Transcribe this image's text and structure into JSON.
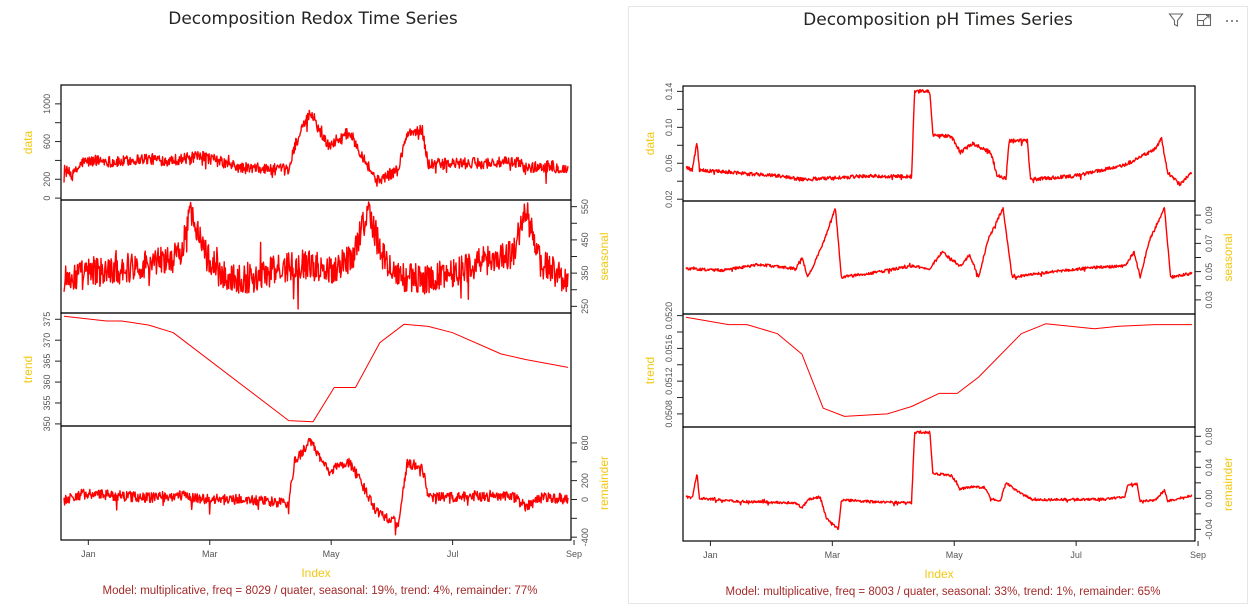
{
  "toolbar": {
    "filter_icon": "filter-icon",
    "focus_icon": "focus-mode-icon",
    "more_icon": "more-options-icon"
  },
  "colors": {
    "series": "#ff0000",
    "axis_label": "#f2c811",
    "caption": "#a52a2a",
    "frame": "#000000",
    "tick_text": "#555555"
  },
  "chart_data": [
    {
      "type": "line",
      "title": "Decomposition Redox Time Series",
      "xlabel": "Index",
      "x_ticks": [
        "Jan",
        "Mar",
        "May",
        "Jul",
        "Sep"
      ],
      "x_range_months": [
        0.55,
        8.95
      ],
      "caption": "Model: multiplicative, freq = 8029 / quater, seasonal: 19%, trend: 4%, remainder: 77%",
      "panels": [
        {
          "name": "data",
          "label": "data",
          "axis_side": "left",
          "ylim": [
            -20,
            1200
          ],
          "ticks": [
            "0",
            "200",
            "600",
            "1000"
          ],
          "tick_values": [
            0,
            200,
            600,
            1000
          ],
          "minor_ticks": [
            400,
            800
          ],
          "noise": 60,
          "series": [
            [
              0.6,
              300
            ],
            [
              0.75,
              240
            ],
            [
              0.9,
              380
            ],
            [
              1.2,
              400
            ],
            [
              1.5,
              380
            ],
            [
              1.9,
              420
            ],
            [
              2.3,
              400
            ],
            [
              2.9,
              440
            ],
            [
              3.5,
              320
            ],
            [
              4.3,
              300
            ],
            [
              4.4,
              560
            ],
            [
              4.65,
              900
            ],
            [
              4.95,
              560
            ],
            [
              5.3,
              700
            ],
            [
              5.75,
              180
            ],
            [
              6.1,
              300
            ],
            [
              6.25,
              680
            ],
            [
              6.5,
              720
            ],
            [
              6.6,
              360
            ],
            [
              7.4,
              370
            ],
            [
              8.1,
              380
            ],
            [
              8.2,
              320
            ],
            [
              8.6,
              340
            ],
            [
              8.9,
              300
            ]
          ]
        },
        {
          "name": "seasonal",
          "label": "seasonal",
          "axis_side": "right",
          "ylim": [
            230,
            570
          ],
          "ticks": [
            "250",
            "350",
            "450",
            "550"
          ],
          "tick_values": [
            250,
            350,
            450,
            550
          ],
          "minor_ticks": [
            300,
            400,
            500
          ],
          "noise": 45,
          "series": [
            [
              0.6,
              330
            ],
            [
              1.0,
              350
            ],
            [
              1.5,
              360
            ],
            [
              2.0,
              380
            ],
            [
              2.5,
              400
            ],
            [
              2.7,
              540
            ],
            [
              2.95,
              400
            ],
            [
              3.2,
              340
            ],
            [
              3.6,
              330
            ],
            [
              4.1,
              360
            ],
            [
              4.5,
              380
            ],
            [
              5.0,
              360
            ],
            [
              5.35,
              400
            ],
            [
              5.6,
              540
            ],
            [
              5.85,
              400
            ],
            [
              6.1,
              340
            ],
            [
              6.6,
              330
            ],
            [
              7.1,
              360
            ],
            [
              7.6,
              390
            ],
            [
              8.0,
              410
            ],
            [
              8.2,
              540
            ],
            [
              8.45,
              380
            ],
            [
              8.9,
              330
            ]
          ]
        },
        {
          "name": "trend",
          "label": "trend",
          "axis_side": "left",
          "ylim": [
            349.5,
            376.5
          ],
          "ticks": [
            "350",
            "355",
            "360",
            "365",
            "370",
            "375"
          ],
          "tick_values": [
            350,
            355,
            360,
            365,
            370,
            375
          ],
          "minor_ticks": [],
          "noise": 0,
          "series": [
            [
              0.6,
              375.7
            ],
            [
              1.3,
              374.6
            ],
            [
              1.55,
              374.6
            ],
            [
              2.0,
              373.6
            ],
            [
              2.4,
              371.8
            ],
            [
              4.3,
              350.8
            ],
            [
              4.7,
              350.5
            ],
            [
              5.05,
              358.7
            ],
            [
              5.4,
              358.7
            ],
            [
              5.8,
              369.4
            ],
            [
              6.2,
              373.8
            ],
            [
              6.6,
              373.3
            ],
            [
              7.0,
              371.8
            ],
            [
              7.8,
              366.7
            ],
            [
              8.2,
              365.4
            ],
            [
              8.9,
              363.5
            ]
          ]
        },
        {
          "name": "remainder",
          "label": "remainder",
          "axis_side": "right",
          "ylim": [
            -430,
            780
          ],
          "ticks": [
            "-400",
            "0",
            "200",
            "600"
          ],
          "tick_values": [
            -400,
            0,
            200,
            600
          ],
          "minor_ticks": [
            -200,
            400
          ],
          "noise": 55,
          "series": [
            [
              0.6,
              -10
            ],
            [
              0.9,
              60
            ],
            [
              1.5,
              40
            ],
            [
              2.0,
              20
            ],
            [
              2.5,
              40
            ],
            [
              3.0,
              0
            ],
            [
              3.5,
              0
            ],
            [
              4.3,
              -40
            ],
            [
              4.4,
              400
            ],
            [
              4.65,
              620
            ],
            [
              4.95,
              300
            ],
            [
              5.3,
              400
            ],
            [
              5.75,
              -120
            ],
            [
              6.1,
              -260
            ],
            [
              6.25,
              370
            ],
            [
              6.5,
              360
            ],
            [
              6.6,
              20
            ],
            [
              7.4,
              30
            ],
            [
              8.0,
              30
            ],
            [
              8.2,
              -70
            ],
            [
              8.5,
              30
            ],
            [
              8.9,
              0
            ]
          ]
        }
      ]
    },
    {
      "type": "line",
      "title": "Decomposition pH Times Series",
      "xlabel": "Index",
      "x_ticks": [
        "Jan",
        "Mar",
        "May",
        "Jul",
        "Sep"
      ],
      "x_range_months": [
        0.55,
        8.95
      ],
      "caption": "Model: multiplicative, freq = 8003 / quater, seasonal: 33%, trend: 1%, remainder: 65%",
      "panels": [
        {
          "name": "data",
          "label": "data",
          "axis_side": "left",
          "ylim": [
            0.018,
            0.146
          ],
          "ticks": [
            "0.02",
            "0.06",
            "0.10",
            "0.14"
          ],
          "tick_values": [
            0.02,
            0.06,
            0.1,
            0.14
          ],
          "minor_ticks": [
            0.04,
            0.08,
            0.12
          ],
          "noise": 0.002,
          "series": [
            [
              0.6,
              0.056
            ],
            [
              0.7,
              0.052
            ],
            [
              0.78,
              0.083
            ],
            [
              0.82,
              0.052
            ],
            [
              1.2,
              0.051
            ],
            [
              1.6,
              0.048
            ],
            [
              2.0,
              0.047
            ],
            [
              2.5,
              0.042
            ],
            [
              3.1,
              0.044
            ],
            [
              3.6,
              0.046
            ],
            [
              4.3,
              0.045
            ],
            [
              4.35,
              0.14
            ],
            [
              4.6,
              0.14
            ],
            [
              4.65,
              0.092
            ],
            [
              4.95,
              0.09
            ],
            [
              5.1,
              0.072
            ],
            [
              5.3,
              0.082
            ],
            [
              5.6,
              0.072
            ],
            [
              5.7,
              0.047
            ],
            [
              5.85,
              0.043
            ],
            [
              5.9,
              0.085
            ],
            [
              6.2,
              0.085
            ],
            [
              6.25,
              0.042
            ],
            [
              7.0,
              0.046
            ],
            [
              7.8,
              0.058
            ],
            [
              8.3,
              0.076
            ],
            [
              8.4,
              0.088
            ],
            [
              8.5,
              0.05
            ],
            [
              8.7,
              0.036
            ],
            [
              8.9,
              0.05
            ]
          ]
        },
        {
          "name": "seasonal",
          "label": "seasonal",
          "axis_side": "right",
          "ylim": [
            0.02,
            0.1
          ],
          "ticks": [
            "0.03",
            "0.05",
            "0.07",
            "0.09"
          ],
          "tick_values": [
            0.03,
            0.05,
            0.07,
            0.09
          ],
          "minor_ticks": [
            0.04,
            0.06,
            0.08
          ],
          "noise": 0.001,
          "series": [
            [
              0.6,
              0.052
            ],
            [
              1.2,
              0.051
            ],
            [
              1.8,
              0.055
            ],
            [
              2.4,
              0.052
            ],
            [
              2.5,
              0.06
            ],
            [
              2.6,
              0.046
            ],
            [
              2.85,
              0.07
            ],
            [
              3.05,
              0.095
            ],
            [
              3.15,
              0.046
            ],
            [
              3.8,
              0.05
            ],
            [
              4.3,
              0.054
            ],
            [
              4.6,
              0.052
            ],
            [
              4.8,
              0.064
            ],
            [
              5.1,
              0.054
            ],
            [
              5.25,
              0.062
            ],
            [
              5.4,
              0.046
            ],
            [
              5.55,
              0.072
            ],
            [
              5.8,
              0.095
            ],
            [
              5.95,
              0.046
            ],
            [
              6.6,
              0.05
            ],
            [
              7.3,
              0.053
            ],
            [
              7.8,
              0.054
            ],
            [
              7.95,
              0.064
            ],
            [
              8.05,
              0.046
            ],
            [
              8.2,
              0.072
            ],
            [
              8.45,
              0.095
            ],
            [
              8.55,
              0.046
            ],
            [
              8.9,
              0.049
            ]
          ]
        },
        {
          "name": "trend",
          "label": "trend",
          "axis_side": "left",
          "ylim": [
            0.05064,
            0.05202
          ],
          "ticks": [
            "0.0508",
            "0.0512",
            "0.0516",
            "0.0520"
          ],
          "tick_values": [
            0.0508,
            0.0512,
            0.0516,
            0.052
          ],
          "minor_ticks": [
            0.051,
            0.0514,
            0.0518
          ],
          "noise": 0,
          "series": [
            [
              0.6,
              0.05198
            ],
            [
              1.3,
              0.05189
            ],
            [
              1.6,
              0.05189
            ],
            [
              2.1,
              0.05178
            ],
            [
              2.5,
              0.05153
            ],
            [
              2.85,
              0.05087
            ],
            [
              3.2,
              0.05077
            ],
            [
              3.9,
              0.0508
            ],
            [
              4.3,
              0.05089
            ],
            [
              4.75,
              0.05105
            ],
            [
              5.05,
              0.05105
            ],
            [
              5.4,
              0.05125
            ],
            [
              6.1,
              0.05178
            ],
            [
              6.5,
              0.0519
            ],
            [
              7.3,
              0.05184
            ],
            [
              7.7,
              0.05187
            ],
            [
              8.3,
              0.05189
            ],
            [
              8.9,
              0.05189
            ]
          ]
        },
        {
          "name": "remainder",
          "label": "remainder",
          "axis_side": "right",
          "ylim": [
            -0.055,
            0.092
          ],
          "ticks": [
            "-0.04",
            "0.00",
            "0.04",
            "0.08"
          ],
          "tick_values": [
            -0.04,
            0.0,
            0.04,
            0.08
          ],
          "minor_ticks": [
            -0.02,
            0.02,
            0.06
          ],
          "noise": 0.0015,
          "series": [
            [
              0.6,
              0.002
            ],
            [
              0.7,
              0.0
            ],
            [
              0.78,
              0.032
            ],
            [
              0.82,
              0.0
            ],
            [
              1.5,
              -0.004
            ],
            [
              2.0,
              -0.005
            ],
            [
              2.4,
              -0.006
            ],
            [
              2.5,
              -0.012
            ],
            [
              2.6,
              -0.002
            ],
            [
              2.8,
              0.002
            ],
            [
              2.9,
              -0.025
            ],
            [
              3.1,
              -0.04
            ],
            [
              3.15,
              -0.002
            ],
            [
              3.6,
              -0.004
            ],
            [
              4.3,
              -0.006
            ],
            [
              4.35,
              0.085
            ],
            [
              4.6,
              0.085
            ],
            [
              4.65,
              0.032
            ],
            [
              4.95,
              0.03
            ],
            [
              5.1,
              0.012
            ],
            [
              5.3,
              0.015
            ],
            [
              5.5,
              0.014
            ],
            [
              5.6,
              0.0
            ],
            [
              5.75,
              -0.004
            ],
            [
              5.85,
              0.02
            ],
            [
              6.1,
              0.006
            ],
            [
              6.3,
              -0.002
            ],
            [
              7.5,
              -0.001
            ],
            [
              7.8,
              0.002
            ],
            [
              7.85,
              0.018
            ],
            [
              8.0,
              0.018
            ],
            [
              8.05,
              -0.004
            ],
            [
              8.3,
              -0.002
            ],
            [
              8.45,
              0.01
            ],
            [
              8.5,
              -0.004
            ],
            [
              8.9,
              0.004
            ]
          ]
        }
      ]
    }
  ]
}
